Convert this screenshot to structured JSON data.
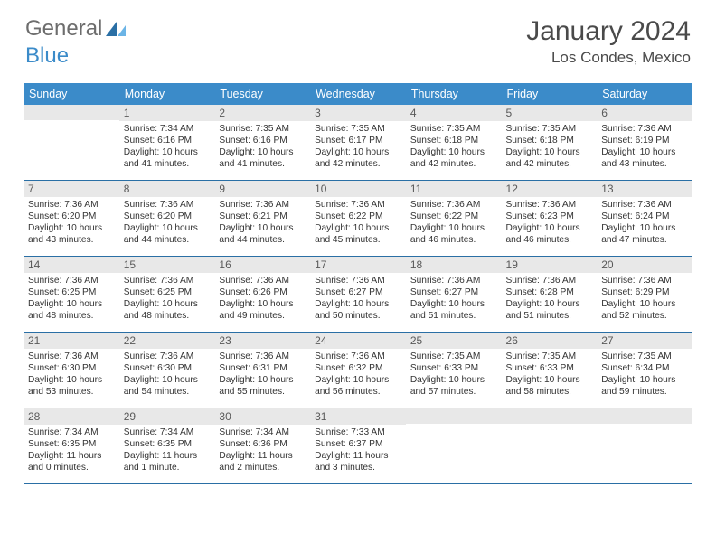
{
  "brand": {
    "part1": "General",
    "part2": "Blue",
    "icon_color_dark": "#2a6fa5",
    "icon_color_light": "#6bb4e6"
  },
  "title": {
    "month": "January 2024",
    "location": "Los Condes, Mexico"
  },
  "colors": {
    "header_bg": "#3b8bc9",
    "header_text": "#ffffff",
    "daynum_bg": "#e8e8e8",
    "cell_border": "#2a6fa5",
    "text": "#333333",
    "title_text": "#4a4a4a"
  },
  "dow": [
    "Sunday",
    "Monday",
    "Tuesday",
    "Wednesday",
    "Thursday",
    "Friday",
    "Saturday"
  ],
  "weeks": [
    [
      null,
      {
        "n": "1",
        "sr": "7:34 AM",
        "ss": "6:16 PM",
        "dl": "10 hours and 41 minutes."
      },
      {
        "n": "2",
        "sr": "7:35 AM",
        "ss": "6:16 PM",
        "dl": "10 hours and 41 minutes."
      },
      {
        "n": "3",
        "sr": "7:35 AM",
        "ss": "6:17 PM",
        "dl": "10 hours and 42 minutes."
      },
      {
        "n": "4",
        "sr": "7:35 AM",
        "ss": "6:18 PM",
        "dl": "10 hours and 42 minutes."
      },
      {
        "n": "5",
        "sr": "7:35 AM",
        "ss": "6:18 PM",
        "dl": "10 hours and 42 minutes."
      },
      {
        "n": "6",
        "sr": "7:36 AM",
        "ss": "6:19 PM",
        "dl": "10 hours and 43 minutes."
      }
    ],
    [
      {
        "n": "7",
        "sr": "7:36 AM",
        "ss": "6:20 PM",
        "dl": "10 hours and 43 minutes."
      },
      {
        "n": "8",
        "sr": "7:36 AM",
        "ss": "6:20 PM",
        "dl": "10 hours and 44 minutes."
      },
      {
        "n": "9",
        "sr": "7:36 AM",
        "ss": "6:21 PM",
        "dl": "10 hours and 44 minutes."
      },
      {
        "n": "10",
        "sr": "7:36 AM",
        "ss": "6:22 PM",
        "dl": "10 hours and 45 minutes."
      },
      {
        "n": "11",
        "sr": "7:36 AM",
        "ss": "6:22 PM",
        "dl": "10 hours and 46 minutes."
      },
      {
        "n": "12",
        "sr": "7:36 AM",
        "ss": "6:23 PM",
        "dl": "10 hours and 46 minutes."
      },
      {
        "n": "13",
        "sr": "7:36 AM",
        "ss": "6:24 PM",
        "dl": "10 hours and 47 minutes."
      }
    ],
    [
      {
        "n": "14",
        "sr": "7:36 AM",
        "ss": "6:25 PM",
        "dl": "10 hours and 48 minutes."
      },
      {
        "n": "15",
        "sr": "7:36 AM",
        "ss": "6:25 PM",
        "dl": "10 hours and 48 minutes."
      },
      {
        "n": "16",
        "sr": "7:36 AM",
        "ss": "6:26 PM",
        "dl": "10 hours and 49 minutes."
      },
      {
        "n": "17",
        "sr": "7:36 AM",
        "ss": "6:27 PM",
        "dl": "10 hours and 50 minutes."
      },
      {
        "n": "18",
        "sr": "7:36 AM",
        "ss": "6:27 PM",
        "dl": "10 hours and 51 minutes."
      },
      {
        "n": "19",
        "sr": "7:36 AM",
        "ss": "6:28 PM",
        "dl": "10 hours and 51 minutes."
      },
      {
        "n": "20",
        "sr": "7:36 AM",
        "ss": "6:29 PM",
        "dl": "10 hours and 52 minutes."
      }
    ],
    [
      {
        "n": "21",
        "sr": "7:36 AM",
        "ss": "6:30 PM",
        "dl": "10 hours and 53 minutes."
      },
      {
        "n": "22",
        "sr": "7:36 AM",
        "ss": "6:30 PM",
        "dl": "10 hours and 54 minutes."
      },
      {
        "n": "23",
        "sr": "7:36 AM",
        "ss": "6:31 PM",
        "dl": "10 hours and 55 minutes."
      },
      {
        "n": "24",
        "sr": "7:36 AM",
        "ss": "6:32 PM",
        "dl": "10 hours and 56 minutes."
      },
      {
        "n": "25",
        "sr": "7:35 AM",
        "ss": "6:33 PM",
        "dl": "10 hours and 57 minutes."
      },
      {
        "n": "26",
        "sr": "7:35 AM",
        "ss": "6:33 PM",
        "dl": "10 hours and 58 minutes."
      },
      {
        "n": "27",
        "sr": "7:35 AM",
        "ss": "6:34 PM",
        "dl": "10 hours and 59 minutes."
      }
    ],
    [
      {
        "n": "28",
        "sr": "7:34 AM",
        "ss": "6:35 PM",
        "dl": "11 hours and 0 minutes."
      },
      {
        "n": "29",
        "sr": "7:34 AM",
        "ss": "6:35 PM",
        "dl": "11 hours and 1 minute."
      },
      {
        "n": "30",
        "sr": "7:34 AM",
        "ss": "6:36 PM",
        "dl": "11 hours and 2 minutes."
      },
      {
        "n": "31",
        "sr": "7:33 AM",
        "ss": "6:37 PM",
        "dl": "11 hours and 3 minutes."
      },
      null,
      null,
      null
    ]
  ],
  "labels": {
    "sunrise": "Sunrise: ",
    "sunset": "Sunset: ",
    "daylight": "Daylight: "
  }
}
